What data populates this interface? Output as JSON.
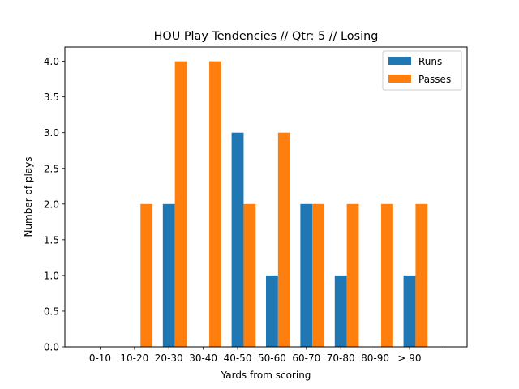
{
  "chart_data": {
    "type": "bar",
    "title": "HOU Play Tendencies // Qtr: 5 // Losing",
    "xlabel": "Yards from scoring",
    "ylabel": "Number of plays",
    "categories": [
      "0-10",
      "10-20",
      "20-30",
      "30-40",
      "40-50",
      "50-60",
      "60-70",
      "70-80",
      "80-90",
      "> 90",
      ""
    ],
    "series": [
      {
        "name": "Runs",
        "color": "#1f77b4",
        "values": [
          0,
          0,
          2,
          0,
          3,
          1,
          2,
          1,
          0,
          1,
          0
        ]
      },
      {
        "name": "Passes",
        "color": "#ff7f0e",
        "values": [
          0,
          2,
          4,
          4,
          2,
          3,
          2,
          2,
          2,
          2,
          0
        ]
      }
    ],
    "ylim": [
      0,
      4.2
    ],
    "yticks": [
      "0.0",
      "0.5",
      "1.0",
      "1.5",
      "2.0",
      "2.5",
      "3.0",
      "3.5",
      "4.0"
    ],
    "grid": false,
    "legend_position": "top-right"
  }
}
